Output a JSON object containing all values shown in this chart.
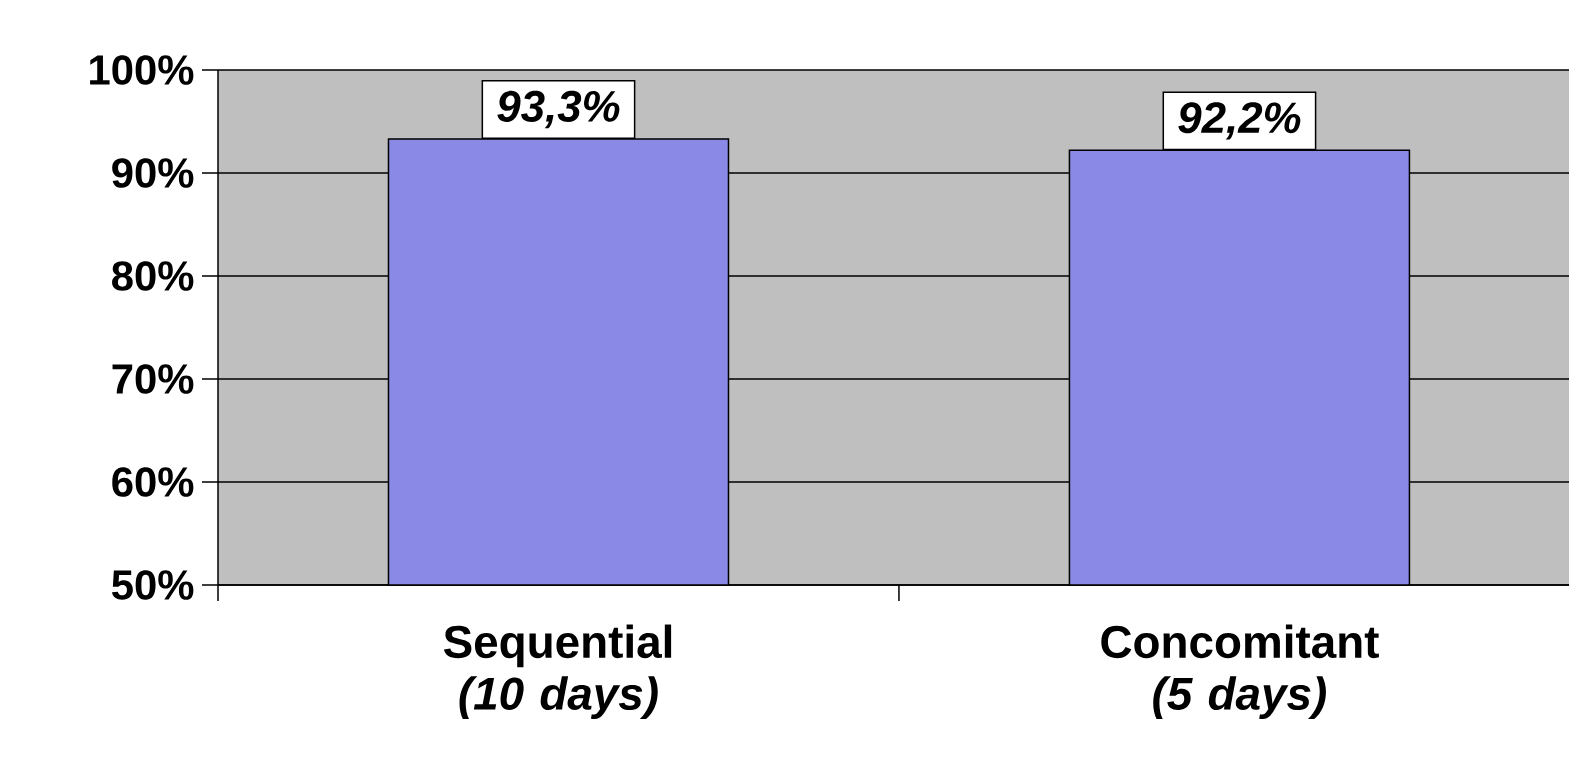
{
  "chart_data": {
    "type": "bar",
    "categories": [
      "Sequential *(10 days)*",
      "Concomitant *(5 days)*"
    ],
    "values": [
      93.3,
      92.2
    ],
    "value_labels": [
      "93,3%",
      "92,2%"
    ],
    "color": "#8a8ae6",
    "ylim": [
      50,
      100
    ],
    "yticks": [
      {
        "value": 50,
        "label": "50%"
      },
      {
        "value": 60,
        "label": "60%"
      },
      {
        "value": 70,
        "label": "70%"
      },
      {
        "value": 80,
        "label": "80%"
      },
      {
        "value": 90,
        "label": "90%"
      },
      {
        "value": 100,
        "label": "100%"
      }
    ],
    "grid": "y"
  }
}
